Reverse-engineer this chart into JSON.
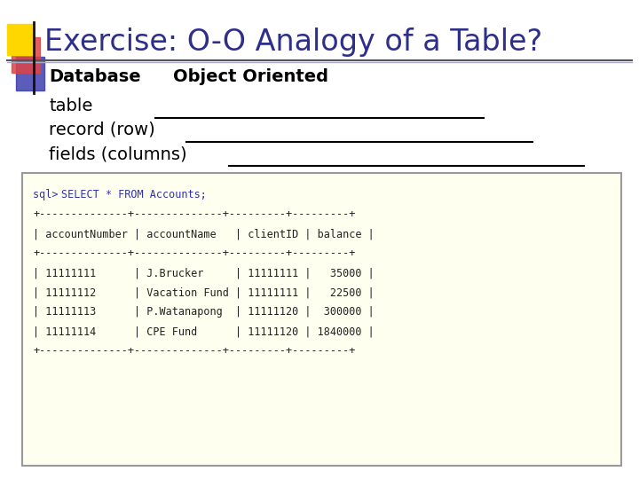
{
  "title": "Exercise: O-O Analogy of a Table?",
  "title_color": "#2E2E8B",
  "title_fontsize": 24,
  "bg_color": "#FFFFFF",
  "header_left": "Database",
  "header_right": "Object Oriented",
  "sql_box_bg": "#FFFFF0",
  "sql_box_border": "#999999",
  "sql_prompt_color": "#3333AA",
  "sql_text_color": "#222222",
  "sql_fontsize": 8.5,
  "label_fontsize": 14,
  "label_color": "#000000",
  "separator_line": "+--------------+--------------+---------+---------+",
  "header_line": "| accountNumber | accountName   | clientID | balance |",
  "data_lines": [
    "| 11111111      | J.Brucker     | 11111111 |   35000 |",
    "| 11111112      | Vacation Fund | 11111111 |   22500 |",
    "| 11111113      | P.Watanapong  | 11111120 |  300000 |",
    "| 11111114      | CPE Fund      | 11111120 | 1840000 |"
  ]
}
